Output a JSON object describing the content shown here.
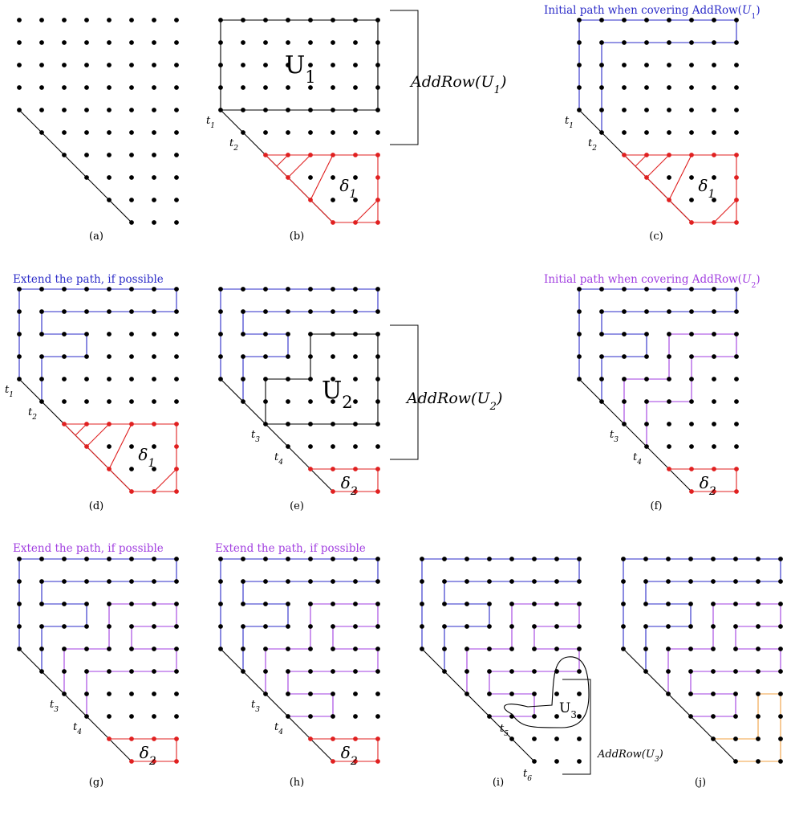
{
  "colors": {
    "blue": "#2b2bc8",
    "purple": "#a13ee0",
    "red": "#e02020",
    "orange": "#f0a040",
    "black": "#000000"
  },
  "panels": {
    "a": {
      "label": "(a)"
    },
    "b": {
      "label": "(b)",
      "region": "U",
      "region_sub": "1",
      "delta": "δ",
      "delta_sub": "1",
      "addrow": "AddRow(U",
      "addrow_sub": "1",
      "addrow_close": ")",
      "t1": "t",
      "t1_sub": "1",
      "t2": "t",
      "t2_sub": "2"
    },
    "c": {
      "label": "(c)",
      "title": "Initial path when covering AddRow(",
      "title_var": "U",
      "title_sub": "1",
      "title_close": ")",
      "delta": "δ",
      "delta_sub": "1",
      "t1": "t",
      "t1_sub": "1",
      "t2": "t",
      "t2_sub": "2"
    },
    "d": {
      "label": "(d)",
      "title": "Extend the path, if possible",
      "delta": "δ",
      "delta_sub": "1",
      "t1": "t",
      "t1_sub": "1",
      "t2": "t",
      "t2_sub": "2"
    },
    "e": {
      "label": "(e)",
      "region": "U",
      "region_sub": "2",
      "delta": "δ",
      "delta_sub": "2",
      "addrow": "AddRow(U",
      "addrow_sub": "2",
      "addrow_close": ")",
      "t3": "t",
      "t3_sub": "3",
      "t4": "t",
      "t4_sub": "4"
    },
    "f": {
      "label": "(f)",
      "title": "Initial path when covering AddRow(",
      "title_var": "U",
      "title_sub": "2",
      "title_close": ")",
      "delta": "δ",
      "delta_sub": "2",
      "t3": "t",
      "t3_sub": "3",
      "t4": "t",
      "t4_sub": "4"
    },
    "g": {
      "label": "(g)",
      "title": "Extend the path, if possible",
      "delta": "δ",
      "delta_sub": "2",
      "t3": "t",
      "t3_sub": "3",
      "t4": "t",
      "t4_sub": "4"
    },
    "h": {
      "label": "(h)",
      "title": "Extend the path, if possible",
      "delta": "δ",
      "delta_sub": "2",
      "t3": "t",
      "t3_sub": "3",
      "t4": "t",
      "t4_sub": "4"
    },
    "i": {
      "label": "(i)",
      "region": "U",
      "region_sub": "3",
      "addrow": "AddRow(U",
      "addrow_sub": "3",
      "addrow_close": ")",
      "t5": "t",
      "t5_sub": "5",
      "t6": "t",
      "t6_sub": "6"
    },
    "j": {
      "label": "(j)"
    }
  }
}
